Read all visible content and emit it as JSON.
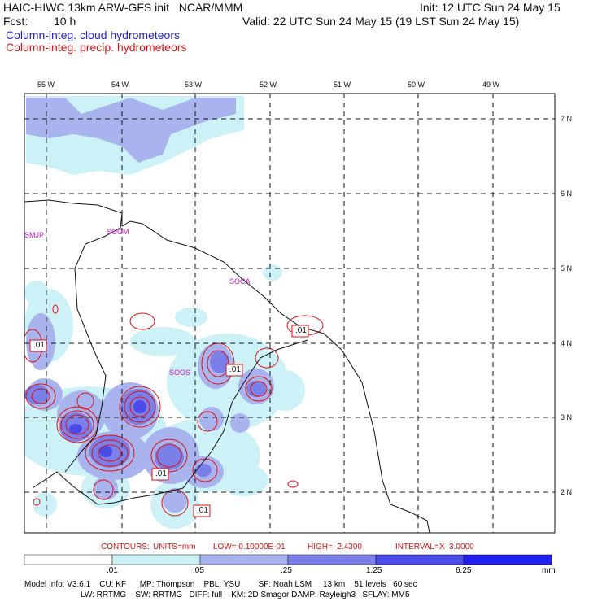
{
  "header": {
    "title_left": "HAIC-HIWC 13km ARW-GFS init   NCAR/MMM",
    "fcst_label": "Fcst:",
    "fcst_value": "10 h",
    "init": "Init: 12 UTC Sun 24 May 15",
    "valid": "Valid: 22 UTC Sun 24 May 15 (19 LST Sun 24 May 15)",
    "legend_cloud": "Column-integ. cloud hydrometeors",
    "legend_precip": "Column-integ. precip. hydrometeors"
  },
  "map": {
    "lon_labels": [
      "55 W",
      "54 W",
      "53 W",
      "52 W",
      "51 W",
      "50 W",
      "49 W"
    ],
    "lat_labels": [
      "7 N",
      "6 N",
      "5 N",
      "4 N",
      "3 N",
      "2 N"
    ],
    "stations": [
      "SMJP",
      "SOGM",
      "SOCA",
      "SOOS"
    ],
    "contour_labels": [
      ".01",
      ".01",
      ".01",
      ".01",
      ".01"
    ]
  },
  "contour_info": {
    "contours": "CONTOURS:",
    "units": "UNITS=mm",
    "low": "LOW= 0.10000E-01",
    "high": "HIGH=  2.4300",
    "interval": "INTERVAL=X  3.0000"
  },
  "colorbar": {
    "ticks": [
      ".01",
      ".05",
      ".25",
      "1.25",
      "6.25"
    ],
    "unit": "mm",
    "colors": [
      "#ffffff",
      "#ccf2f8",
      "#a9b4ee",
      "#7a80e8",
      "#4a4ae6",
      "#2020ee"
    ]
  },
  "model_info": {
    "line1": "Model Info: V3.6.1    CU: KF      MP: Thompson    PBL: YSU        SF: Noah LSM     13 km    51 levels   60 sec",
    "line2": "LW: RRTMG    SW: RRTMG   DIFF: full    KM: 2D Smagor DAMP: Rayleigh3   SFLAY: MM5"
  }
}
